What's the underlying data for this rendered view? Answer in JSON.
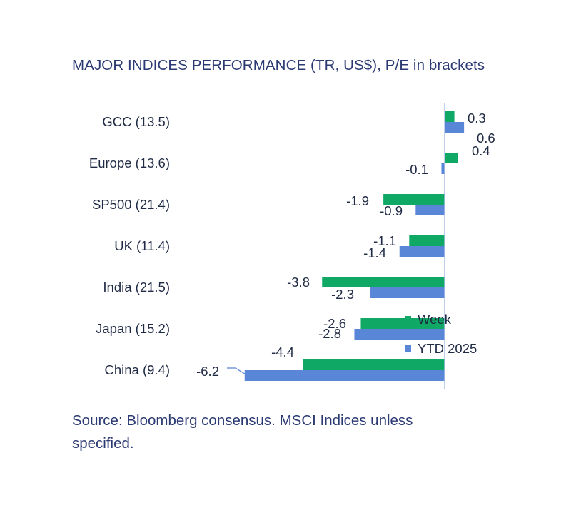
{
  "chart_data": {
    "type": "bar",
    "orientation": "horizontal",
    "title": "MAJOR INDICES PERFORMANCE (TR, US$), P/E in brackets",
    "categories": [
      "GCC (13.5)",
      "Europe (13.6)",
      "SP500 (21.4)",
      "UK (11.4)",
      "India (21.5)",
      "Japan (15.2)",
      "China (9.4)"
    ],
    "series": [
      {
        "name": "Week",
        "color": "#0fa865",
        "values": [
          0.3,
          0.4,
          -1.9,
          -1.1,
          -3.8,
          -2.6,
          -4.4
        ]
      },
      {
        "name": "YTD 2025",
        "color": "#5a86d8",
        "values": [
          0.6,
          -0.1,
          -0.9,
          -1.4,
          -2.3,
          -2.8,
          -6.2
        ]
      }
    ],
    "value_labels": [
      [
        "0.3",
        "0.4",
        "-1.9",
        "-1.1",
        "-3.8",
        "-2.6",
        "-4.4"
      ],
      [
        "0.6",
        "-0.1",
        "-0.9",
        "-1.4",
        "-2.3",
        "-2.8",
        "-6.2"
      ]
    ],
    "xlim": [
      -6.2,
      0.6
    ],
    "grid": false,
    "legend": "right-inside"
  },
  "footer": {
    "source": "Source: Bloomberg consensus. MSCI Indices unless specified."
  }
}
